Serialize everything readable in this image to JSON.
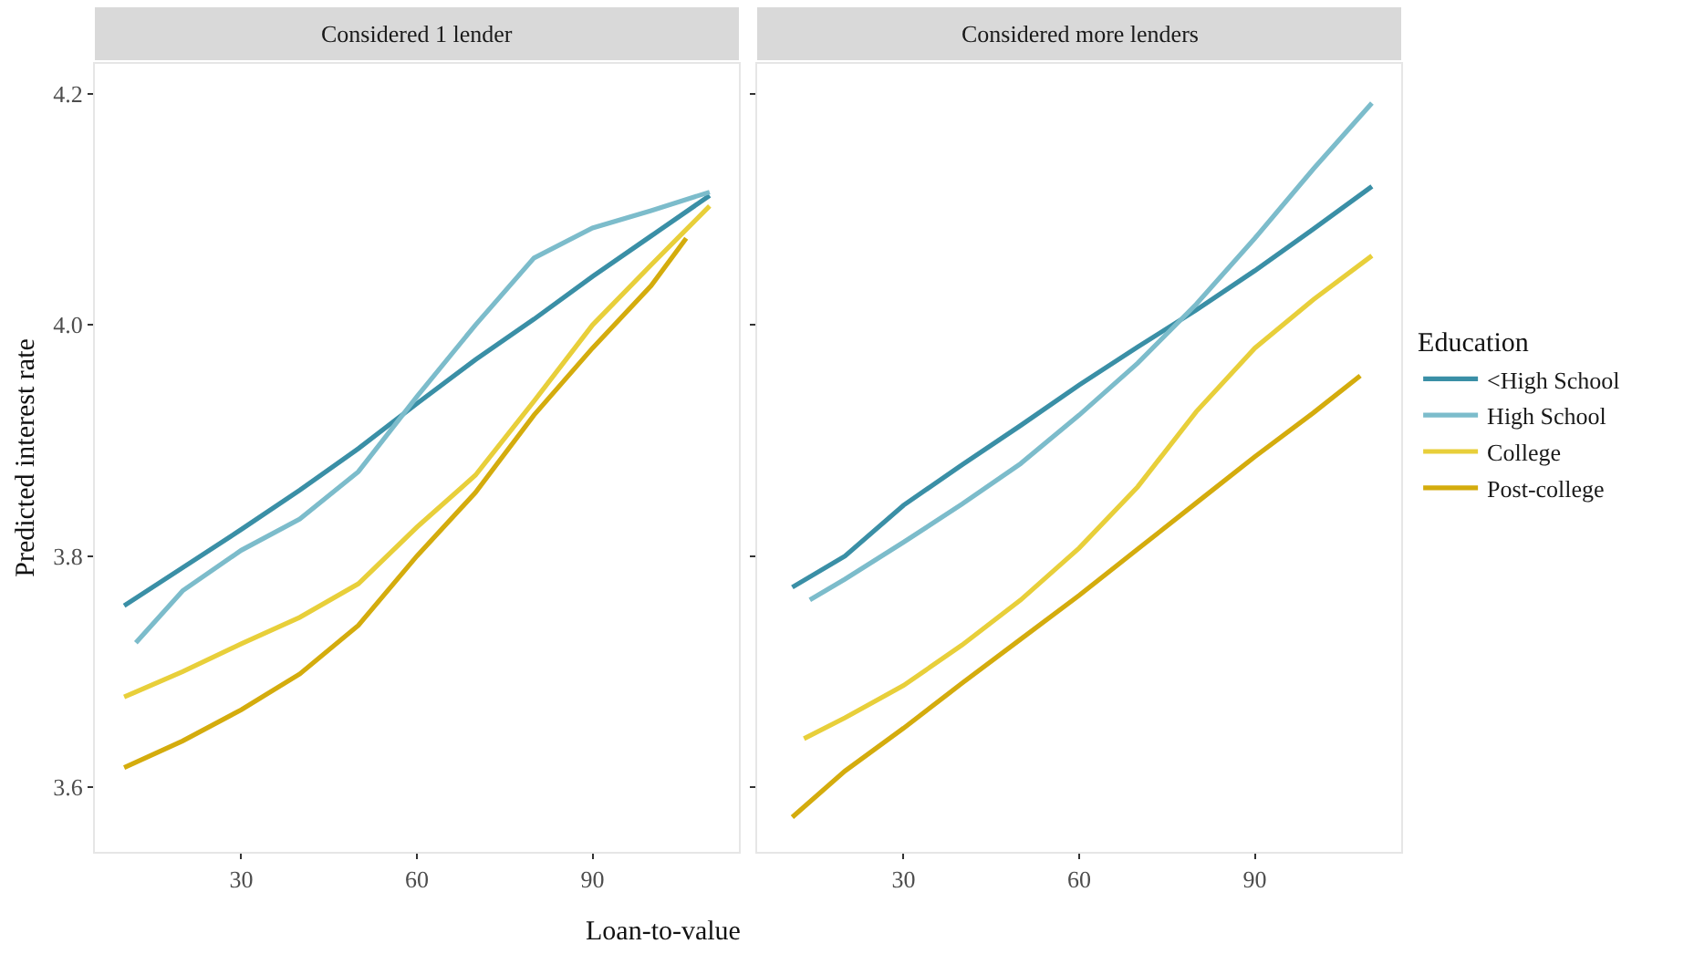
{
  "chart_data": [
    {
      "type": "line",
      "title": "Considered 1 lender",
      "xlabel": "Loan-to-value",
      "ylabel": "Predicted interest rate",
      "xlim": [
        5,
        115
      ],
      "xticks": [
        30,
        60,
        90
      ],
      "ylim": [
        3.544,
        4.226
      ],
      "yticks": [
        3.6,
        3.8,
        {
          "value": 4.0,
          "label": "4.0"
        },
        4.2
      ],
      "grid": false,
      "series": [
        {
          "color": "#3a8fa6",
          "x": [
            10,
            20,
            30,
            40,
            50,
            60,
            70,
            80,
            90,
            100,
            110
          ],
          "values": [
            3.757,
            3.79,
            3.823,
            3.857,
            3.893,
            3.932,
            3.97,
            4.005,
            4.042,
            4.077,
            4.112
          ]
        },
        {
          "color": "#7cbccb",
          "x": [
            12,
            20,
            30,
            40,
            50,
            60,
            70,
            80,
            90,
            100,
            110
          ],
          "values": [
            3.725,
            3.77,
            3.805,
            3.832,
            3.873,
            3.938,
            4.0,
            4.058,
            4.084,
            4.099,
            4.115
          ]
        },
        {
          "color": "#e8cf3a",
          "x": [
            10,
            20,
            30,
            40,
            50,
            60,
            70,
            80,
            90,
            100,
            110
          ],
          "values": [
            3.678,
            3.7,
            3.724,
            3.747,
            3.776,
            3.825,
            3.87,
            3.934,
            4.0,
            4.052,
            4.103
          ]
        },
        {
          "color": "#d4ac0d",
          "x": [
            10,
            20,
            30,
            40,
            50,
            60,
            70,
            80,
            90,
            100,
            106
          ],
          "values": [
            3.617,
            3.64,
            3.667,
            3.698,
            3.74,
            3.8,
            3.855,
            3.922,
            3.98,
            4.034,
            4.075
          ]
        }
      ]
    },
    {
      "type": "line",
      "title": "Considered more lenders",
      "legend_title": "Education",
      "legend": "right",
      "tick_labels": "x",
      "xlim": [
        5,
        115
      ],
      "xticks": [
        30,
        60,
        90
      ],
      "ylim": [
        3.544,
        4.226
      ],
      "yticks": [
        3.6,
        3.8,
        4.0,
        4.2
      ],
      "grid": false,
      "series": [
        {
          "name": "<High School",
          "color": "#3a8fa6",
          "x": [
            11,
            20,
            30,
            40,
            50,
            60,
            70,
            80,
            90,
            100,
            110
          ],
          "values": [
            3.773,
            3.8,
            3.844,
            3.879,
            3.913,
            3.948,
            3.981,
            4.013,
            4.047,
            4.083,
            4.12
          ]
        },
        {
          "name": "High School",
          "color": "#7cbccb",
          "x": [
            14,
            20,
            30,
            40,
            50,
            60,
            70,
            80,
            90,
            100,
            110
          ],
          "values": [
            3.762,
            3.78,
            3.812,
            3.845,
            3.88,
            3.922,
            3.967,
            4.018,
            4.075,
            4.135,
            4.192
          ]
        },
        {
          "name": "College",
          "color": "#e8cf3a",
          "x": [
            13,
            20,
            30,
            40,
            50,
            60,
            70,
            80,
            90,
            100,
            110
          ],
          "values": [
            3.642,
            3.66,
            3.688,
            3.723,
            3.762,
            3.807,
            3.86,
            3.925,
            3.98,
            4.022,
            4.06
          ]
        },
        {
          "name": "Post-college",
          "color": "#d4ac0d",
          "x": [
            11,
            20,
            30,
            40,
            50,
            60,
            70,
            80,
            90,
            100,
            108
          ],
          "values": [
            3.574,
            3.614,
            3.651,
            3.69,
            3.728,
            3.766,
            3.806,
            3.846,
            3.886,
            3.924,
            3.956
          ]
        }
      ]
    }
  ]
}
